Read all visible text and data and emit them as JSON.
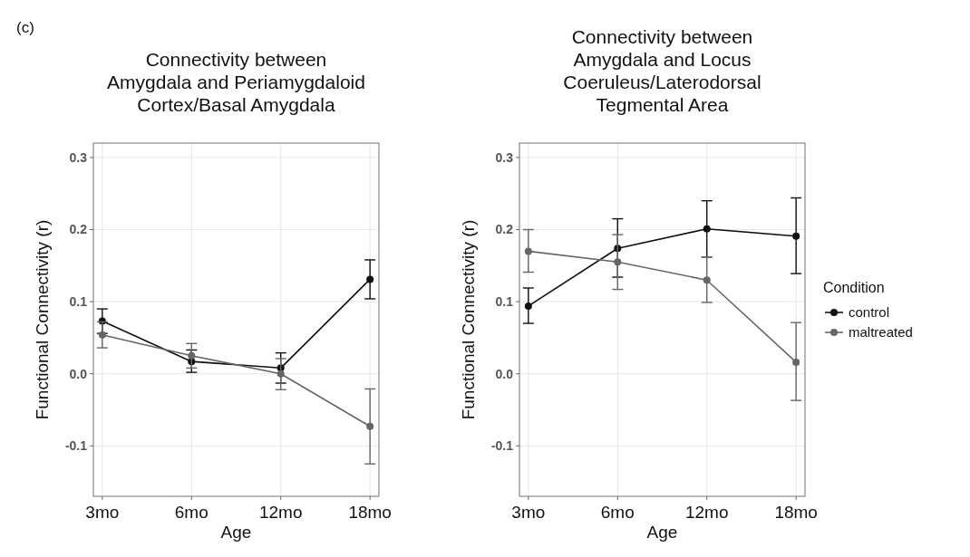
{
  "chart_data": [
    {
      "type": "line",
      "title": "Connectivity between Amygdala and Periamygdaloid Cortex/Basal Amygdala",
      "xlabel": "Age",
      "ylabel": "Functional Connectivity (r)",
      "annotations": [
        "(c)"
      ],
      "categories": [
        "3mo",
        "6mo",
        "12mo",
        "18mo"
      ],
      "ylim": [
        -0.17,
        0.32
      ],
      "yticks": [
        -0.1,
        {
          "value": 0,
          "label": "0.0"
        },
        0.1,
        0.2,
        0.3
      ],
      "grid": true,
      "marker": "circle",
      "legend": false,
      "series": [
        {
          "color": "#111111",
          "values": [
            0.073,
            0.017,
            0.008,
            0.131
          ],
          "errors": [
            [
              0.056,
              0.09
            ],
            [
              0.002,
              0.033
            ],
            [
              -0.013,
              0.029
            ],
            [
              0.104,
              0.158
            ]
          ]
        },
        {
          "color": "#666666",
          "values": [
            0.054,
            0.025,
            0.0,
            -0.073
          ],
          "errors": [
            [
              0.036,
              0.072
            ],
            [
              0.008,
              0.042
            ],
            [
              -0.022,
              0.021
            ],
            [
              -0.125,
              -0.021
            ]
          ]
        }
      ]
    },
    {
      "type": "line",
      "title": "Connectivity between Amygdala and Locus Coeruleus/Laterodorsal Tegmental Area",
      "xlabel": "Age",
      "ylabel": "Functional Connectivity (r)",
      "legend_title": "Condition",
      "categories": [
        "3mo",
        "6mo",
        "12mo",
        "18mo"
      ],
      "ylim": [
        -0.17,
        0.32
      ],
      "yticks": [
        -0.1,
        {
          "value": 0,
          "label": "0.0"
        },
        0.1,
        0.2,
        0.3
      ],
      "grid": true,
      "marker": "circle",
      "legend": "right",
      "series": [
        {
          "name": "control",
          "color": "#111111",
          "values": [
            0.094,
            0.174,
            0.201,
            0.191
          ],
          "errors": [
            [
              0.07,
              0.119
            ],
            [
              0.134,
              0.215
            ],
            [
              0.162,
              0.24
            ],
            [
              0.139,
              0.244
            ]
          ]
        },
        {
          "name": "maltreated",
          "color": "#666666",
          "values": [
            0.17,
            0.155,
            0.13,
            0.016
          ],
          "errors": [
            [
              0.141,
              0.2
            ],
            [
              0.117,
              0.193
            ],
            [
              0.099,
              0.162
            ],
            [
              -0.037,
              0.071
            ]
          ]
        }
      ]
    }
  ]
}
